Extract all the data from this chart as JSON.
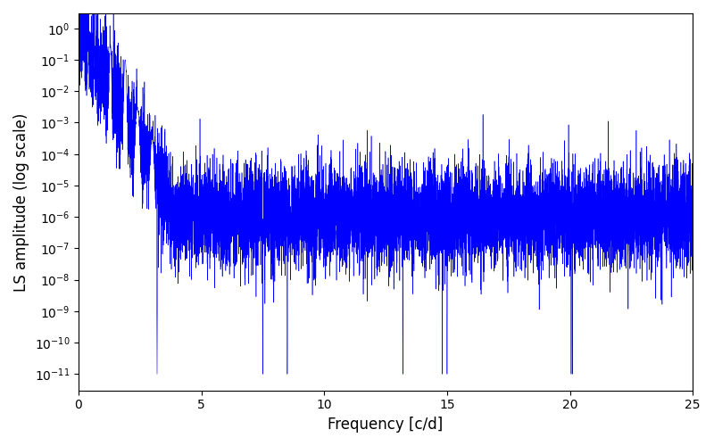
{
  "xlabel": "Frequency [c/d]",
  "ylabel": "LS amplitude (log scale)",
  "line_color": "#0000FF",
  "xlim": [
    0,
    25
  ],
  "ylim": [
    3e-12,
    3
  ],
  "freq_min": 0.005,
  "freq_max": 25.0,
  "n_points": 10000,
  "figsize": [
    8.0,
    5.0
  ],
  "dpi": 100
}
